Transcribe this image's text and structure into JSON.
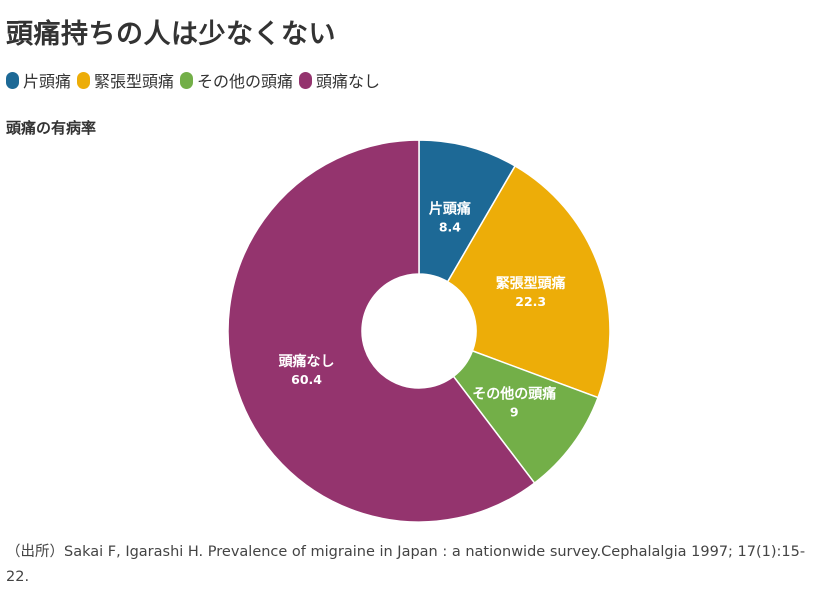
{
  "title": "頭痛持ちの人は少なくない",
  "subtitle": "頭痛の有病率",
  "chart_data": {
    "type": "pie",
    "donut": true,
    "legend_position": "top-left",
    "slices": [
      {
        "label": "片頭痛",
        "value": 8.4,
        "display": "8.4",
        "color": "#1d6996"
      },
      {
        "label": "緊張型頭痛",
        "value": 22.3,
        "display": "22.3",
        "color": "#edad08"
      },
      {
        "label": "その他の頭痛",
        "value": 9,
        "display": "9",
        "color": "#73af48"
      },
      {
        "label": "頭痛なし",
        "value": 60.4,
        "display": "60.4",
        "color": "#94346e"
      }
    ]
  },
  "source": "（出所）Sakai F, Igarashi H. Prevalence of migraine in Japan : a nationwide survey.Cephalalgia 1997; 17(1):15-22."
}
